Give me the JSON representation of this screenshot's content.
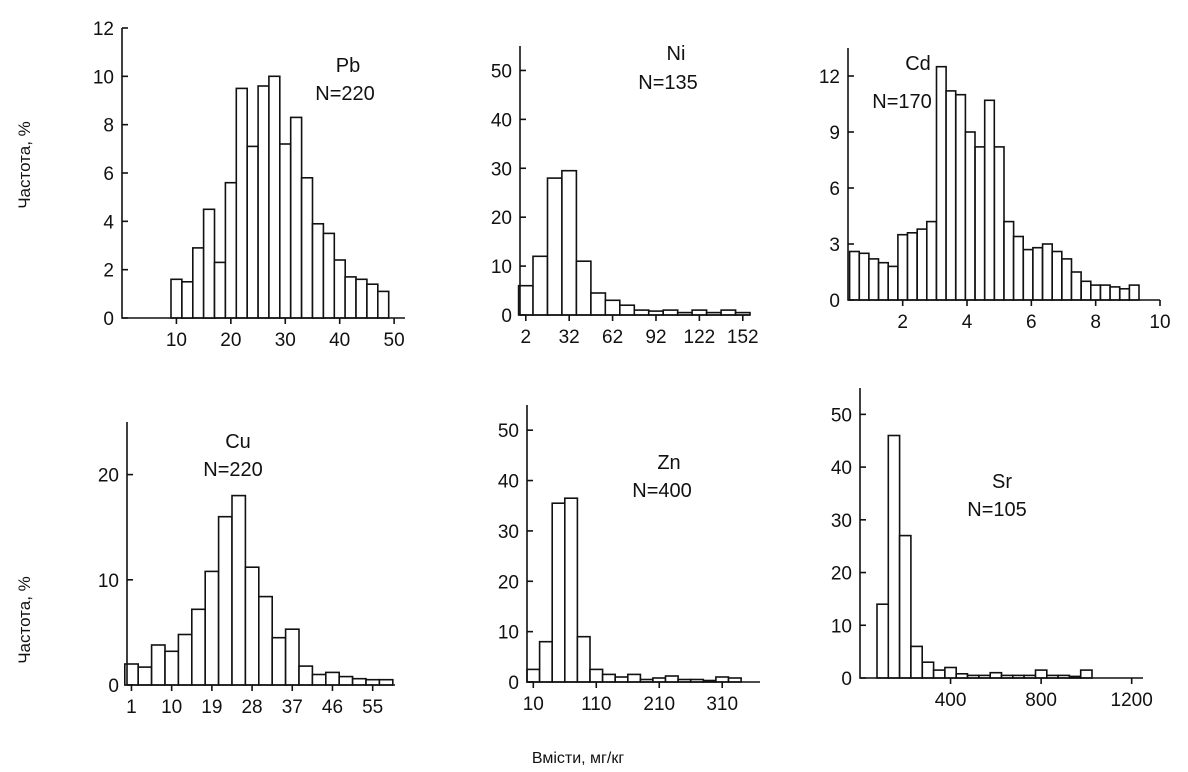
{
  "figure": {
    "y_label_top": "Частота, %",
    "y_label_bottom": "Частота, %",
    "x_label": "Вмісти, мг/кг"
  },
  "chart_data": [
    {
      "type": "bar",
      "element": "Pb",
      "n_label": "N=220",
      "x": [
        10,
        12,
        14,
        16,
        18,
        20,
        22,
        24,
        26,
        28,
        30,
        32,
        34,
        36,
        38,
        40,
        42,
        44,
        46,
        48
      ],
      "values": [
        1.6,
        1.5,
        2.9,
        4.5,
        2.3,
        5.6,
        9.5,
        7.1,
        9.6,
        10.0,
        7.2,
        8.3,
        5.8,
        3.9,
        3.5,
        2.4,
        1.7,
        1.6,
        1.4,
        1.1
      ],
      "xlim": [
        0,
        52
      ],
      "ylim": [
        0,
        12
      ],
      "xticks": [
        10,
        20,
        30,
        40,
        50
      ],
      "yticks": [
        0,
        2,
        4,
        6,
        8,
        10,
        12
      ]
    },
    {
      "type": "bar",
      "element": "Ni",
      "n_label": "N=135",
      "x": [
        2,
        12,
        22,
        32,
        42,
        52,
        62,
        72,
        82,
        92,
        102,
        112,
        122,
        132,
        142,
        152
      ],
      "values": [
        6,
        12,
        28,
        29.5,
        11,
        4.5,
        3,
        2,
        1,
        0.8,
        1,
        0.5,
        1,
        0.5,
        1,
        0.5
      ],
      "xlim": [
        -2,
        157
      ],
      "ylim": [
        0,
        55
      ],
      "xticks": [
        2,
        32,
        62,
        92,
        122,
        152
      ],
      "xtick_labels": [
        "2",
        "32",
        "62",
        "92",
        "122",
        "152"
      ],
      "yticks": [
        0,
        10,
        20,
        30,
        40,
        50
      ]
    },
    {
      "type": "bar",
      "element": "Cd",
      "n_label": "N=170",
      "x": [
        0.5,
        0.8,
        1.1,
        1.4,
        1.7,
        2.0,
        2.3,
        2.6,
        2.9,
        3.2,
        3.5,
        3.8,
        4.1,
        4.4,
        4.7,
        5.0,
        5.3,
        5.6,
        5.9,
        6.2,
        6.5,
        6.8,
        7.1,
        7.4,
        7.7,
        8.0,
        8.3,
        8.6,
        8.9,
        9.2
      ],
      "values": [
        2.6,
        2.5,
        2.2,
        2.0,
        1.8,
        3.5,
        3.6,
        3.8,
        4.2,
        12.5,
        11.2,
        11.0,
        9.0,
        8.2,
        10.7,
        8.2,
        4.2,
        3.4,
        2.7,
        2.8,
        3.0,
        2.6,
        2.2,
        1.5,
        1.0,
        0.8,
        0.8,
        0.7,
        0.6,
        0.8
      ],
      "xlim": [
        0.3,
        10
      ],
      "ylim": [
        0,
        13.5
      ],
      "xticks": [
        2,
        4,
        6,
        8,
        10
      ],
      "yticks": [
        0,
        3,
        6,
        9,
        12
      ]
    },
    {
      "type": "bar",
      "element": "Cu",
      "n_label": "N=220",
      "x": [
        1,
        4,
        7,
        10,
        13,
        16,
        19,
        22,
        25,
        28,
        31,
        34,
        37,
        40,
        43,
        46,
        49,
        52,
        55,
        58
      ],
      "values": [
        2,
        1.7,
        3.8,
        3.2,
        4.8,
        7.2,
        10.8,
        16,
        18,
        11.2,
        8.4,
        4.5,
        5.3,
        1.8,
        1,
        1.2,
        0.8,
        0.6,
        0.5,
        0.5
      ],
      "xlim": [
        0,
        60
      ],
      "ylim": [
        0,
        25
      ],
      "xticks": [
        1,
        10,
        19,
        28,
        37,
        46,
        55
      ],
      "yticks": [
        0,
        10,
        20
      ]
    },
    {
      "type": "bar",
      "element": "Zn",
      "n_label": "N=400",
      "x": [
        10,
        30,
        50,
        70,
        90,
        110,
        130,
        150,
        170,
        190,
        210,
        230,
        250,
        270,
        290,
        310,
        330,
        350
      ],
      "values": [
        2.5,
        8,
        35.5,
        36.5,
        9,
        2.5,
        1.5,
        1,
        1.5,
        0.5,
        0.8,
        1.2,
        0.5,
        0.5,
        0.3,
        1,
        0.8,
        0
      ],
      "xlim": [
        0,
        370
      ],
      "ylim": [
        0,
        55
      ],
      "xticks": [
        10,
        110,
        210,
        310
      ],
      "yticks": [
        0,
        10,
        20,
        30,
        40,
        50
      ]
    },
    {
      "type": "bar",
      "element": "Sr",
      "n_label": "N=105",
      "x": [
        100,
        150,
        200,
        250,
        300,
        350,
        400,
        450,
        500,
        550,
        600,
        650,
        700,
        750,
        800,
        850,
        900,
        950,
        1000,
        1050,
        1100
      ],
      "values": [
        14,
        46,
        27,
        6,
        3,
        1.5,
        2,
        0.8,
        0.5,
        0.5,
        1,
        0.5,
        0.5,
        0.5,
        1.5,
        0.5,
        0.5,
        0.3,
        1.5,
        0,
        0
      ],
      "xlim": [
        0,
        1250
      ],
      "ylim": [
        0,
        55
      ],
      "xticks": [
        400,
        800,
        1200
      ],
      "yticks": [
        0,
        10,
        20,
        30,
        40,
        50
      ]
    }
  ]
}
